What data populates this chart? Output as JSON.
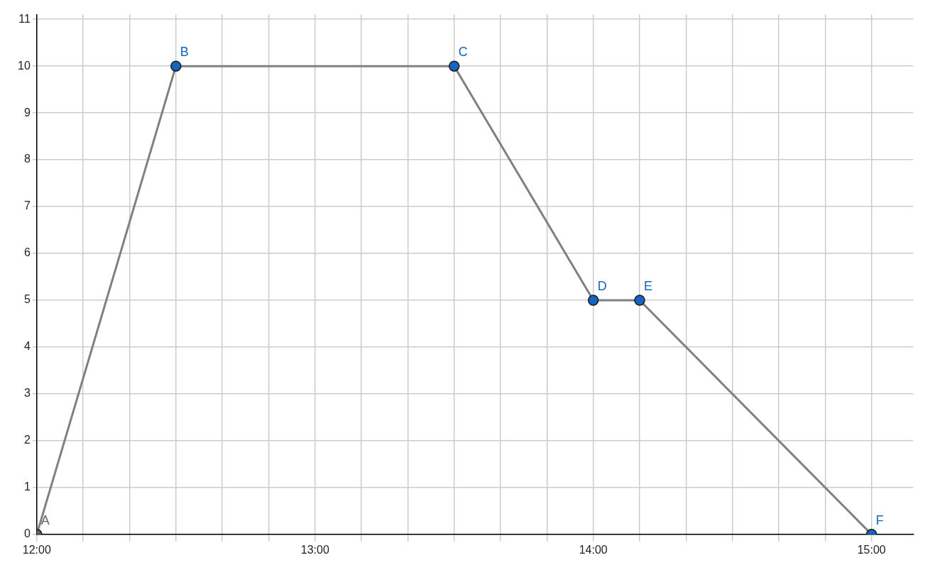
{
  "chart_data": {
    "type": "line",
    "x": [
      12,
      12.5,
      13.5,
      14,
      14.1667,
      15
    ],
    "series": [
      {
        "color": "#808080",
        "colors": [
          "#616161",
          "#1565c0",
          "#1565c0",
          "#1565c0",
          "#1565c0",
          "#1565c0"
        ],
        "values": [
          0,
          10,
          10,
          5,
          5,
          0
        ]
      }
    ],
    "xlim": [
      12,
      15.15
    ],
    "ylim": [
      0,
      11.1
    ],
    "xticks": [
      {
        "value": 12,
        "label": "12:00"
      },
      {
        "value": 12.1667,
        "label": null
      },
      {
        "value": 12.3333,
        "label": null
      },
      {
        "value": 12.5,
        "label": null
      },
      {
        "value": 12.6667,
        "label": null
      },
      {
        "value": 12.8333,
        "label": null
      },
      {
        "value": 13,
        "label": "13:00"
      },
      {
        "value": 13.1667,
        "label": null
      },
      {
        "value": 13.3333,
        "label": null
      },
      {
        "value": 13.5,
        "label": null
      },
      {
        "value": 13.6667,
        "label": null
      },
      {
        "value": 13.8333,
        "label": null
      },
      {
        "value": 14,
        "label": "14:00"
      },
      {
        "value": 14.1667,
        "label": null
      },
      {
        "value": 14.3333,
        "label": null
      },
      {
        "value": 14.5,
        "label": null
      },
      {
        "value": 14.6667,
        "label": null
      },
      {
        "value": 14.8333,
        "label": null
      },
      {
        "value": 15,
        "label": "15:00"
      }
    ],
    "yticks": [
      0,
      1,
      2,
      3,
      4,
      5,
      6,
      7,
      8,
      9,
      10,
      11
    ],
    "grid": true,
    "marker": "circle",
    "line_style": "solid",
    "annotations": [
      {
        "text": "A",
        "x": 12,
        "y": 0
      },
      {
        "text": "B",
        "x": 12.5,
        "y": 10
      },
      {
        "text": "C",
        "x": 13.5,
        "y": 10
      },
      {
        "text": "D",
        "x": 14,
        "y": 5
      },
      {
        "text": "E",
        "x": 14.1667,
        "y": 5
      },
      {
        "text": "F",
        "x": 15,
        "y": 0
      }
    ]
  }
}
